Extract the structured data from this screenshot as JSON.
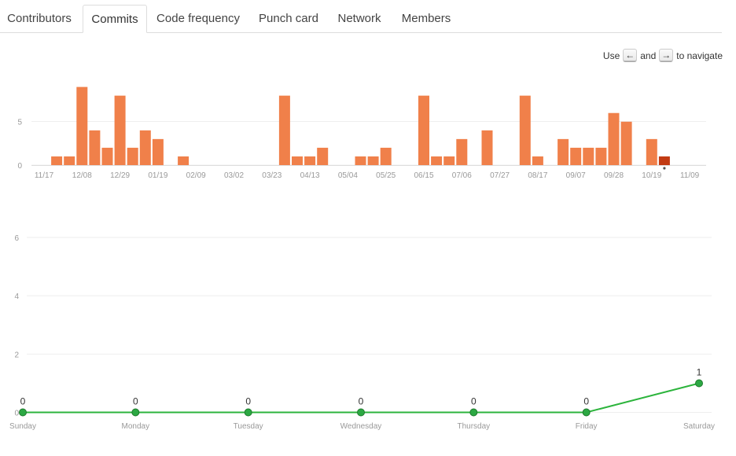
{
  "tabs": [
    {
      "label": "Contributors",
      "active": false
    },
    {
      "label": "Commits",
      "active": true
    },
    {
      "label": "Code frequency",
      "active": false
    },
    {
      "label": "Punch card",
      "active": false
    },
    {
      "label": "Network",
      "active": false
    },
    {
      "label": "Members",
      "active": false
    }
  ],
  "nav_hint": {
    "use": "Use",
    "left_key": "←",
    "and": "and",
    "right_key": "→",
    "suffix": "to navigate"
  },
  "colors": {
    "bar": "#f0804a",
    "bar_selected": "#c23b13",
    "line": "#2cb43c",
    "point": "#2ca843",
    "grid": "#eeeeee"
  },
  "chart_data": [
    {
      "type": "bar",
      "x_tick_labels": [
        "11/17",
        "12/08",
        "12/29",
        "01/19",
        "02/09",
        "03/02",
        "03/23",
        "04/13",
        "05/04",
        "05/25",
        "06/15",
        "07/06",
        "07/27",
        "08/17",
        "09/07",
        "09/28",
        "10/19",
        "11/09"
      ],
      "values": [
        0,
        1,
        1,
        9,
        4,
        2,
        8,
        2,
        4,
        3,
        0,
        1,
        0,
        0,
        0,
        0,
        0,
        0,
        0,
        8,
        1,
        1,
        2,
        0,
        0,
        1,
        1,
        2,
        0,
        0,
        8,
        1,
        1,
        3,
        0,
        4,
        0,
        0,
        8,
        1,
        0,
        3,
        2,
        2,
        2,
        6,
        5,
        0,
        3,
        1,
        0,
        0
      ],
      "selected_index": 49,
      "yticks": [
        0,
        5
      ],
      "ylim": [
        0,
        10
      ]
    },
    {
      "type": "line",
      "categories": [
        "Sunday",
        "Monday",
        "Tuesday",
        "Wednesday",
        "Thursday",
        "Friday",
        "Saturday"
      ],
      "values": [
        0,
        0,
        0,
        0,
        0,
        0,
        1
      ],
      "yticks": [
        0,
        2,
        4,
        6
      ],
      "ylim": [
        0,
        6.6
      ]
    }
  ]
}
